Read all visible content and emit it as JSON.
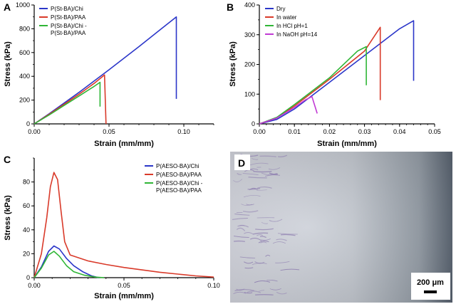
{
  "chart_data": [
    {
      "panel": "A",
      "type": "line",
      "xlabel": "Strain (mm/mm)",
      "ylabel": "Stress (kPa)",
      "xlim": [
        0,
        0.12
      ],
      "ylim": [
        0,
        1000
      ],
      "xticks": [
        "0.00",
        "0.05",
        "0.10"
      ],
      "xtick_values": [
        0,
        0.05,
        0.1
      ],
      "yticks": [
        "0",
        "200",
        "400",
        "600",
        "800",
        "1000"
      ],
      "ytick_values": [
        0,
        200,
        400,
        600,
        800,
        1000
      ],
      "legend_position": "top-left",
      "series": [
        {
          "name": "P(St-BA)/Chi",
          "color": "#2b36c9",
          "points": [
            [
              0,
              0
            ],
            [
              0.01,
              85
            ],
            [
              0.03,
              265
            ],
            [
              0.05,
              455
            ],
            [
              0.07,
              650
            ],
            [
              0.085,
              800
            ],
            [
              0.095,
              900
            ],
            [
              0.095,
              210
            ]
          ]
        },
        {
          "name": "P(St-BA)/PAA",
          "color": "#d93a2a",
          "points": [
            [
              0,
              0
            ],
            [
              0.01,
              80
            ],
            [
              0.02,
              165
            ],
            [
              0.03,
              250
            ],
            [
              0.04,
              340
            ],
            [
              0.047,
              412
            ],
            [
              0.048,
              0
            ]
          ]
        },
        {
          "name": "P(St-BA)/Chi -\nP(St-BA)/PAA",
          "color": "#2fb636",
          "points": [
            [
              0,
              0
            ],
            [
              0.01,
              75
            ],
            [
              0.02,
              155
            ],
            [
              0.03,
              235
            ],
            [
              0.04,
              315
            ],
            [
              0.044,
              350
            ],
            [
              0.044,
              145
            ]
          ]
        }
      ]
    },
    {
      "panel": "B",
      "type": "line",
      "xlabel": "Strain (mm/mm)",
      "ylabel": "Stress (kPa)",
      "xlim": [
        0,
        0.05
      ],
      "ylim": [
        0,
        400
      ],
      "xticks": [
        "0.00",
        "0.01",
        "0.02",
        "0.03",
        "0.04",
        "0.05"
      ],
      "xtick_values": [
        0,
        0.01,
        0.02,
        0.03,
        0.04,
        0.05
      ],
      "yticks": [
        "0",
        "100",
        "200",
        "300",
        "400"
      ],
      "ytick_values": [
        0,
        100,
        200,
        300,
        400
      ],
      "legend_position": "top-left",
      "series": [
        {
          "name": "Dry",
          "color": "#2b36c9",
          "points": [
            [
              0,
              0
            ],
            [
              0.005,
              15
            ],
            [
              0.01,
              50
            ],
            [
              0.02,
              140
            ],
            [
              0.03,
              230
            ],
            [
              0.04,
              320
            ],
            [
              0.044,
              347
            ],
            [
              0.044,
              145
            ]
          ]
        },
        {
          "name": "In water",
          "color": "#d93a2a",
          "points": [
            [
              0,
              0
            ],
            [
              0.005,
              20
            ],
            [
              0.01,
              60
            ],
            [
              0.02,
              150
            ],
            [
              0.03,
              245
            ],
            [
              0.0345,
              325
            ],
            [
              0.0345,
              80
            ]
          ]
        },
        {
          "name": "In HCl pH=1",
          "color": "#2fb636",
          "points": [
            [
              0,
              0
            ],
            [
              0.005,
              22
            ],
            [
              0.01,
              65
            ],
            [
              0.02,
              155
            ],
            [
              0.028,
              245
            ],
            [
              0.0305,
              260
            ],
            [
              0.0305,
              130
            ]
          ]
        },
        {
          "name": "In NaOH pH=14",
          "color": "#c13ad4",
          "points": [
            [
              0,
              0
            ],
            [
              0.005,
              20
            ],
            [
              0.01,
              55
            ],
            [
              0.013,
              80
            ],
            [
              0.015,
              92
            ],
            [
              0.0165,
              35
            ]
          ]
        }
      ]
    },
    {
      "panel": "C",
      "type": "line",
      "xlabel": "Strain (mm/mm)",
      "ylabel": "Stress (kPa)",
      "xlim": [
        0,
        0.1
      ],
      "ylim": [
        0,
        100
      ],
      "xticks": [
        "0.00",
        "0.05",
        "0.10"
      ],
      "xtick_values": [
        0,
        0.05,
        0.1
      ],
      "yticks": [
        "0",
        "20",
        "40",
        "60",
        "80"
      ],
      "ytick_values": [
        0,
        20,
        40,
        60,
        80
      ],
      "legend_position": "top-right",
      "series": [
        {
          "name": "P(AESO-BA)/Chi",
          "color": "#2b36c9",
          "points": [
            [
              0,
              0
            ],
            [
              0.004,
              9
            ],
            [
              0.008,
              22
            ],
            [
              0.011,
              26.5
            ],
            [
              0.014,
              24
            ],
            [
              0.018,
              16
            ],
            [
              0.022,
              10
            ],
            [
              0.027,
              5
            ],
            [
              0.032,
              1.5
            ],
            [
              0.036,
              0
            ]
          ]
        },
        {
          "name": "P(AESO-BA)/PAA",
          "color": "#d93a2a",
          "points": [
            [
              0,
              0
            ],
            [
              0.004,
              20
            ],
            [
              0.007,
              50
            ],
            [
              0.009,
              76
            ],
            [
              0.011,
              88
            ],
            [
              0.013,
              82
            ],
            [
              0.015,
              55
            ],
            [
              0.017,
              30
            ],
            [
              0.02,
              19
            ],
            [
              0.03,
              14
            ],
            [
              0.04,
              11
            ],
            [
              0.05,
              8.5
            ],
            [
              0.06,
              6.5
            ],
            [
              0.07,
              4.5
            ],
            [
              0.08,
              3
            ],
            [
              0.09,
              1.5
            ],
            [
              0.1,
              0.5
            ]
          ]
        },
        {
          "name": "P(AESO-BA)/Chi -\nP(AESO-BA)/PAA",
          "color": "#2fb636",
          "points": [
            [
              0,
              0
            ],
            [
              0.004,
              8
            ],
            [
              0.008,
              19
            ],
            [
              0.011,
              22
            ],
            [
              0.014,
              18
            ],
            [
              0.018,
              10
            ],
            [
              0.022,
              5
            ],
            [
              0.028,
              2
            ],
            [
              0.034,
              0.5
            ],
            [
              0.039,
              0
            ]
          ]
        }
      ]
    }
  ],
  "panel_d": {
    "label": "D",
    "scale_bar_label": "200 μm",
    "colors": {
      "background": "#cdd1d9",
      "streak": "#8f7fb0",
      "dark_edge": "#556070"
    }
  }
}
